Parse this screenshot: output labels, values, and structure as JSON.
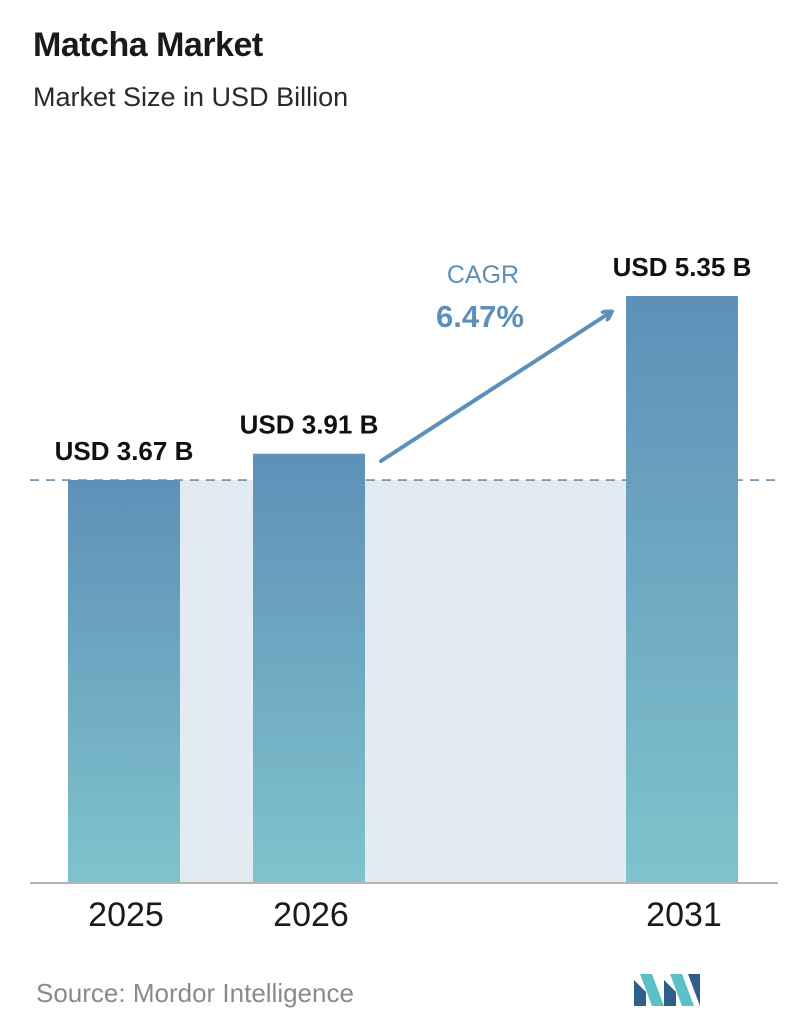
{
  "title": "Matcha Market",
  "subtitle": "Market Size in USD Billion",
  "source": "Source:  Mordor Intelligence",
  "colors": {
    "bar_top": "#5e90b8",
    "bar_bottom": "#7fc3cc",
    "band": "#e3ebf2",
    "arrow": "#5c8fb9",
    "dashed": "#6f8ea6"
  },
  "cagr": {
    "label": "CAGR",
    "value": "6.47%"
  },
  "chart_data": {
    "type": "bar",
    "categories": [
      "2025",
      "2026",
      "2031"
    ],
    "values": [
      3.67,
      3.91,
      5.35
    ],
    "data_labels": [
      "USD 3.67 B",
      "USD 3.91 B",
      "USD 5.35 B"
    ],
    "ylim": [
      0,
      5.35
    ],
    "grid": false
  },
  "logo_icon": "mordor-intelligence-logo-icon"
}
